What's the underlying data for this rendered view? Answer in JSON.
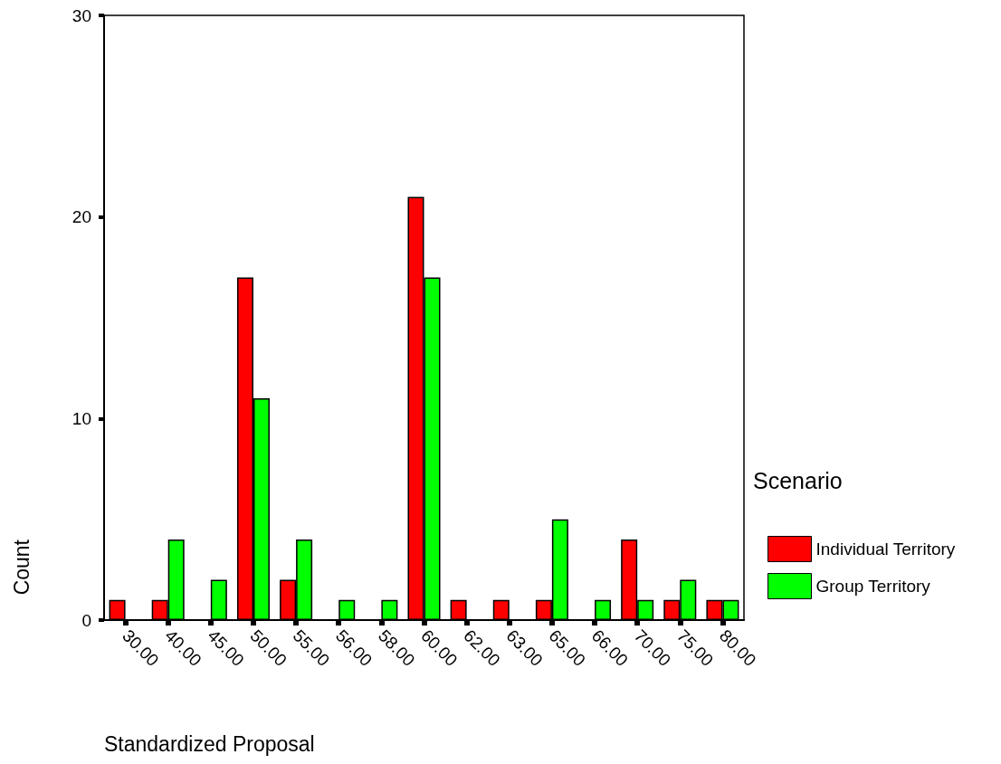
{
  "chart_data": {
    "type": "bar",
    "xlabel": "Standardized Proposal",
    "ylabel": "Count",
    "legend_title": "Scenario",
    "categories": [
      "30.00",
      "40.00",
      "45.00",
      "50.00",
      "55.00",
      "56.00",
      "58.00",
      "60.00",
      "62.00",
      "63.00",
      "65.00",
      "66.00",
      "70.00",
      "75.00",
      "80.00"
    ],
    "series": [
      {
        "name": "Individual Territory",
        "color": "#ff0000",
        "values": [
          1,
          1,
          0,
          17,
          2,
          0,
          0,
          21,
          1,
          1,
          1,
          0,
          4,
          1,
          1
        ]
      },
      {
        "name": "Group Territory",
        "color": "#00ff00",
        "values": [
          0,
          4,
          2,
          11,
          4,
          1,
          1,
          17,
          0,
          0,
          5,
          1,
          1,
          2,
          1
        ]
      }
    ],
    "ylim": [
      0,
      30
    ],
    "yticks": [
      0,
      10,
      20,
      30
    ],
    "grid": false,
    "legend": "right"
  }
}
